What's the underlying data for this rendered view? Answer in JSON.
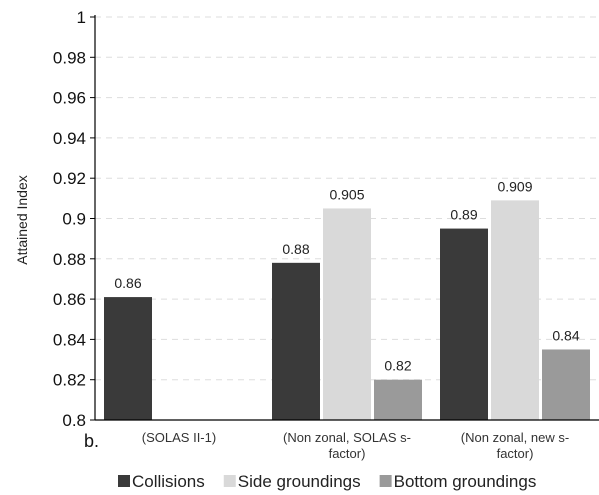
{
  "chart_data": {
    "type": "bar",
    "panel_label": "b.",
    "ylabel": "Attained Index",
    "ylim": [
      0.8,
      1.0
    ],
    "yticks": [
      "0.8",
      "0.82",
      "0.84",
      "0.86",
      "0.88",
      "0.9",
      "0.92",
      "0.94",
      "0.96",
      "0.98",
      "1"
    ],
    "grid": true,
    "legend_position": "bottom",
    "categories": [
      [
        "(SOLAS II-1)"
      ],
      [
        "(Non zonal, SOLAS s-",
        "factor)"
      ],
      [
        "(Non zonal, new s-",
        "factor)"
      ]
    ],
    "series": [
      {
        "name": "Collisions",
        "color": "#3a3a3a",
        "values": [
          0.861,
          0.878,
          0.895
        ],
        "labels": [
          "0.86",
          "0.88",
          "0.89"
        ]
      },
      {
        "name": "Side groundings",
        "color": "#d9d9d9",
        "values": [
          null,
          0.905,
          0.909
        ],
        "labels": [
          null,
          "0.905",
          "0.909"
        ]
      },
      {
        "name": "Bottom groundings",
        "color": "#9a9a9a",
        "values": [
          null,
          0.82,
          0.835
        ],
        "labels": [
          null,
          "0.82",
          "0.84"
        ]
      }
    ]
  }
}
